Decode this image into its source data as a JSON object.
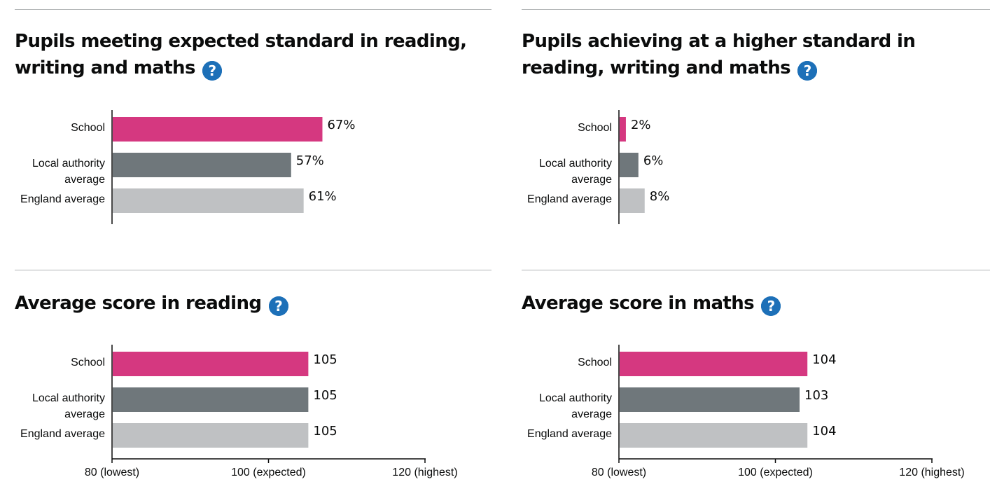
{
  "colors": {
    "school": "#d53880",
    "local_authority": "#6f777b",
    "england": "#bfc1c3",
    "help_icon": "#1d70b8",
    "rule": "#b1b4b6"
  },
  "help_icon_glyph": "?",
  "chart_data": [
    {
      "type": "bar",
      "orientation": "horizontal",
      "title": "Pupils meeting expected standard in reading, writing and maths",
      "categories": [
        [
          "School"
        ],
        [
          "Local authority",
          "average"
        ],
        [
          "England average"
        ]
      ],
      "values": [
        67,
        57,
        61
      ],
      "value_labels": [
        "67%",
        "57%",
        "61%"
      ],
      "xlim": [
        0,
        100
      ],
      "ticks": [],
      "grid": false,
      "legend": "none"
    },
    {
      "type": "bar",
      "orientation": "horizontal",
      "title": "Pupils achieving at a higher standard in reading, writing and maths",
      "categories": [
        [
          "School"
        ],
        [
          "Local authority",
          "average"
        ],
        [
          "England average"
        ]
      ],
      "values": [
        2,
        6,
        8
      ],
      "value_labels": [
        "2%",
        "6%",
        "8%"
      ],
      "xlim": [
        0,
        100
      ],
      "ticks": [],
      "grid": false,
      "legend": "none"
    },
    {
      "type": "bar",
      "orientation": "horizontal",
      "title": "Average score in reading",
      "categories": [
        [
          "School"
        ],
        [
          "Local authority",
          "average"
        ],
        [
          "England average"
        ]
      ],
      "values": [
        105,
        105,
        105
      ],
      "value_labels": [
        "105",
        "105",
        "105"
      ],
      "xlim": [
        80,
        120
      ],
      "ticks": [
        {
          "value": 80,
          "label": "80 (lowest)"
        },
        {
          "value": 100,
          "label": "100 (expected)"
        },
        {
          "value": 120,
          "label": "120 (highest)"
        }
      ],
      "grid": false,
      "legend": "none"
    },
    {
      "type": "bar",
      "orientation": "horizontal",
      "title": "Average score in maths",
      "categories": [
        [
          "School"
        ],
        [
          "Local authority",
          "average"
        ],
        [
          "England average"
        ]
      ],
      "values": [
        104,
        103,
        104
      ],
      "value_labels": [
        "104",
        "103",
        "104"
      ],
      "xlim": [
        80,
        120
      ],
      "ticks": [
        {
          "value": 80,
          "label": "80 (lowest)"
        },
        {
          "value": 100,
          "label": "100 (expected)"
        },
        {
          "value": 120,
          "label": "120 (highest)"
        }
      ],
      "grid": false,
      "legend": "none"
    }
  ]
}
